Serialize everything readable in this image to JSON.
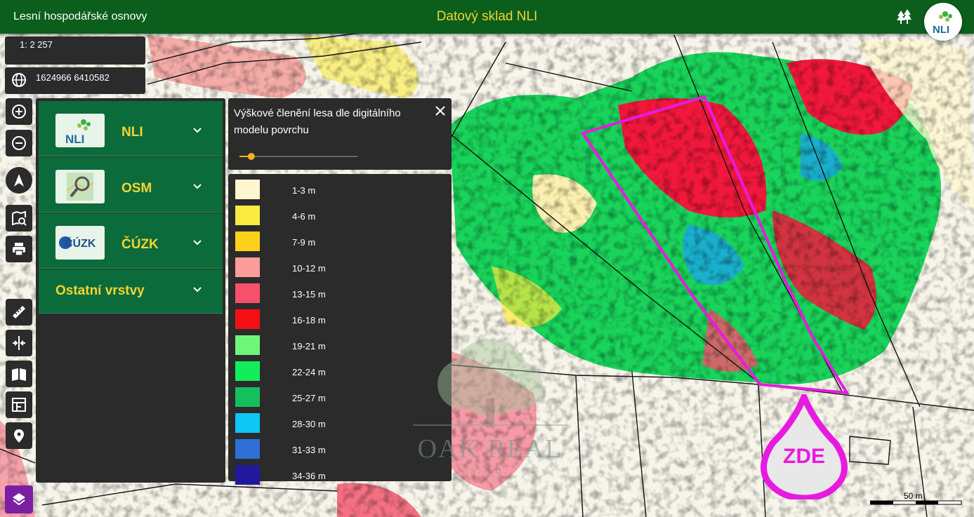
{
  "header": {
    "app_title": "Lesní hospodářské osnovy",
    "center_title": "Datový sklad NLI",
    "logo_text": "NLI"
  },
  "map_info": {
    "scale": "1: 2 257",
    "coordinates": "1624966 6410582"
  },
  "toolbar": {
    "icons": [
      "zoom-in-icon",
      "zoom-out-icon",
      "north-arrow-icon",
      "map-search-icon",
      "print-icon",
      "ruler-icon",
      "split-icon",
      "map-book-icon",
      "layout-icon",
      "location-pin-icon"
    ],
    "layers_icon": "layers-icon"
  },
  "layers_panel": {
    "groups": [
      {
        "label": "NLI",
        "logo": "NLI"
      },
      {
        "label": "OSM",
        "logo": ""
      },
      {
        "label": "ČÚZK",
        "logo": "ČÚZK"
      },
      {
        "label": "Ostatní vrstvy"
      }
    ]
  },
  "legend": {
    "title": "Výškové členění lesa dle digitálního modelu povrchu",
    "opacity_fraction": 0.1,
    "items": [
      {
        "label": "1-3 m",
        "color": "#fdf6cf"
      },
      {
        "label": "4-6 m",
        "color": "#f8ea40"
      },
      {
        "label": "7-9 m",
        "color": "#fbd11a"
      },
      {
        "label": "10-12 m",
        "color": "#fc9d9b"
      },
      {
        "label": "13-15 m",
        "color": "#f6506d"
      },
      {
        "label": "16-18 m",
        "color": "#f50f14"
      },
      {
        "label": "19-21 m",
        "color": "#6ff57a"
      },
      {
        "label": "22-24 m",
        "color": "#12ee5b"
      },
      {
        "label": "25-27 m",
        "color": "#14bf5c"
      },
      {
        "label": "28-30 m",
        "color": "#0ec7f4"
      },
      {
        "label": "31-33 m",
        "color": "#2f6fd8"
      },
      {
        "label": "34-36 m",
        "color": "#21199b"
      }
    ]
  },
  "watermark": {
    "name": "OAK REAL",
    "sub": "s.r.o."
  },
  "marker": {
    "label": "ZDE",
    "color": "#e81ae0"
  },
  "scalebar": {
    "label": "50 m"
  }
}
